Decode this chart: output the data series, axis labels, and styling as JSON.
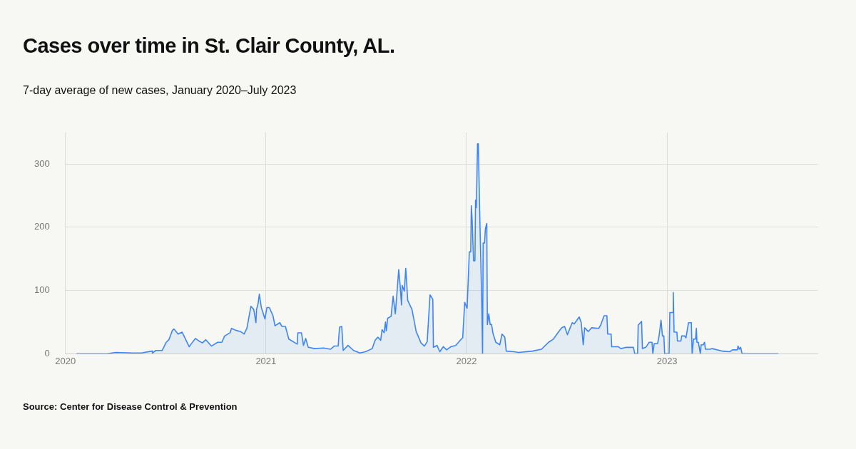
{
  "chart_data": {
    "type": "area",
    "title": "Cases over time in St. Clair County, AL.",
    "subtitle": "7-day average of new cases, January 2020–July 2023",
    "x": [
      2020.055,
      2020.208,
      2020.25,
      2020.336,
      2020.378,
      2020.433,
      2020.434,
      2020.451,
      2020.482,
      2020.503,
      2020.516,
      2020.534,
      2020.541,
      2020.562,
      2020.582,
      2020.596,
      2020.617,
      2020.631,
      2020.648,
      2020.666,
      2020.683,
      2020.7,
      2020.728,
      2020.759,
      2020.78,
      2020.794,
      2020.821,
      2020.828,
      2020.849,
      2020.873,
      2020.891,
      2020.905,
      2020.925,
      2020.939,
      2020.95,
      2020.953,
      2020.96,
      2020.967,
      2020.977,
      2020.995,
      2021.005,
      2021.017,
      2021.035,
      2021.045,
      2021.069,
      2021.08,
      2021.097,
      2021.114,
      2021.156,
      2021.159,
      2021.177,
      2021.187,
      2021.198,
      2021.211,
      2021.243,
      2021.288,
      2021.322,
      2021.34,
      2021.36,
      2021.367,
      2021.378,
      2021.385,
      2021.409,
      2021.437,
      2021.468,
      2021.496,
      2021.53,
      2021.544,
      2021.558,
      2021.572,
      2021.579,
      2021.589,
      2021.596,
      2021.6,
      2021.607,
      2021.624,
      2021.634,
      2021.645,
      2021.652,
      2021.662,
      2021.669,
      2021.676,
      2021.679,
      2021.69,
      2021.697,
      2021.707,
      2021.728,
      2021.749,
      2021.773,
      2021.79,
      2021.804,
      2021.818,
      2021.832,
      2021.835,
      2021.853,
      2021.867,
      2021.884,
      2021.901,
      2021.922,
      2021.946,
      2021.971,
      2021.981,
      2021.991,
      2022.003,
      2022.014,
      2022.021,
      2022.024,
      2022.028,
      2022.035,
      2022.042,
      2022.045,
      2022.049,
      2022.055,
      2022.059,
      2022.066,
      2022.076,
      2022.08,
      2022.083,
      2022.09,
      2022.094,
      2022.101,
      2022.104,
      2022.111,
      2022.118,
      2022.125,
      2022.132,
      2022.146,
      2022.166,
      2022.177,
      2022.191,
      2022.198,
      2022.236,
      2022.26,
      2022.329,
      2022.374,
      2022.409,
      2022.433,
      2022.458,
      2022.475,
      2022.489,
      2022.503,
      2022.527,
      2022.537,
      2022.562,
      2022.572,
      2022.582,
      2022.589,
      2022.607,
      2022.624,
      2022.659,
      2022.669,
      2022.686,
      2022.7,
      2022.704,
      2022.721,
      2022.724,
      2022.756,
      2022.77,
      2022.797,
      2022.832,
      2022.839,
      2022.853,
      2022.856,
      2022.873,
      2022.877,
      2022.894,
      2022.911,
      2022.925,
      2022.929,
      2022.936,
      2022.953,
      2022.96,
      2022.97,
      2022.977,
      2022.984,
      2022.988,
      2023.01,
      2023.014,
      2023.028,
      2023.031,
      2023.035,
      2023.049,
      2023.052,
      2023.069,
      2023.073,
      2023.087,
      2023.094,
      2023.107,
      2023.121,
      2023.125,
      2023.132,
      2023.142,
      2023.146,
      2023.149,
      2023.156,
      2023.166,
      2023.17,
      2023.18,
      2023.187,
      2023.191,
      2023.215,
      2023.225,
      2023.277,
      2023.312,
      2023.326,
      2023.35,
      2023.354,
      2023.36,
      2023.367,
      2023.374,
      2023.555
    ],
    "series": [
      {
        "color": "#3d85f7",
        "values": [
          0,
          0,
          2,
          1,
          1,
          4,
          1,
          5,
          5,
          18,
          22,
          37,
          39,
          31,
          34,
          25,
          11,
          17,
          24,
          20,
          17,
          22,
          12,
          18,
          18,
          28,
          33,
          40,
          37,
          35,
          31,
          40,
          75,
          70,
          49,
          70,
          78,
          94,
          73,
          55,
          73,
          73,
          60,
          44,
          49,
          43,
          43,
          23,
          15,
          33,
          33,
          13,
          24,
          10,
          8,
          9,
          7,
          12,
          12,
          42,
          43,
          5,
          13,
          5,
          1,
          3,
          8,
          21,
          26,
          21,
          38,
          33,
          50,
          36,
          56,
          59,
          91,
          63,
          91,
          133,
          108,
          77,
          108,
          99,
          135,
          84,
          70,
          35,
          17,
          12,
          19,
          93,
          86,
          10,
          13,
          3,
          11,
          6,
          11,
          13,
          22,
          25,
          81,
          72,
          161,
          161,
          234,
          213,
          147,
          147,
          243,
          231,
          332,
          332,
          220,
          81,
          0,
          175,
          175,
          197,
          206,
          46,
          63,
          46,
          46,
          32,
          18,
          14,
          31,
          26,
          4,
          3,
          2,
          4,
          7,
          18,
          23,
          34,
          41,
          43,
          30,
          49,
          47,
          58,
          49,
          14,
          41,
          35,
          41,
          40,
          45,
          60,
          60,
          31,
          31,
          11,
          11,
          8,
          10,
          10,
          0,
          0,
          45,
          51,
          8,
          10,
          18,
          18,
          0,
          16,
          16,
          28,
          53,
          28,
          28,
          0,
          0,
          65,
          65,
          97,
          34,
          34,
          20,
          20,
          28,
          28,
          25,
          49,
          49,
          0,
          23,
          23,
          40,
          18,
          18,
          0,
          14,
          14,
          18,
          7,
          7,
          8,
          4,
          3,
          6,
          6,
          12,
          7,
          10,
          0,
          0
        ]
      }
    ],
    "xlim": [
      2020,
      2023.75
    ],
    "xticks": [
      2020,
      2021,
      2022,
      2023
    ],
    "ylim": [
      0,
      350
    ],
    "yticks": [
      0,
      100,
      200,
      300
    ],
    "grid": true,
    "marker": "none",
    "line_style": "solid",
    "annotations": [
      "Source: Center for Disease Control & Prevention"
    ]
  }
}
